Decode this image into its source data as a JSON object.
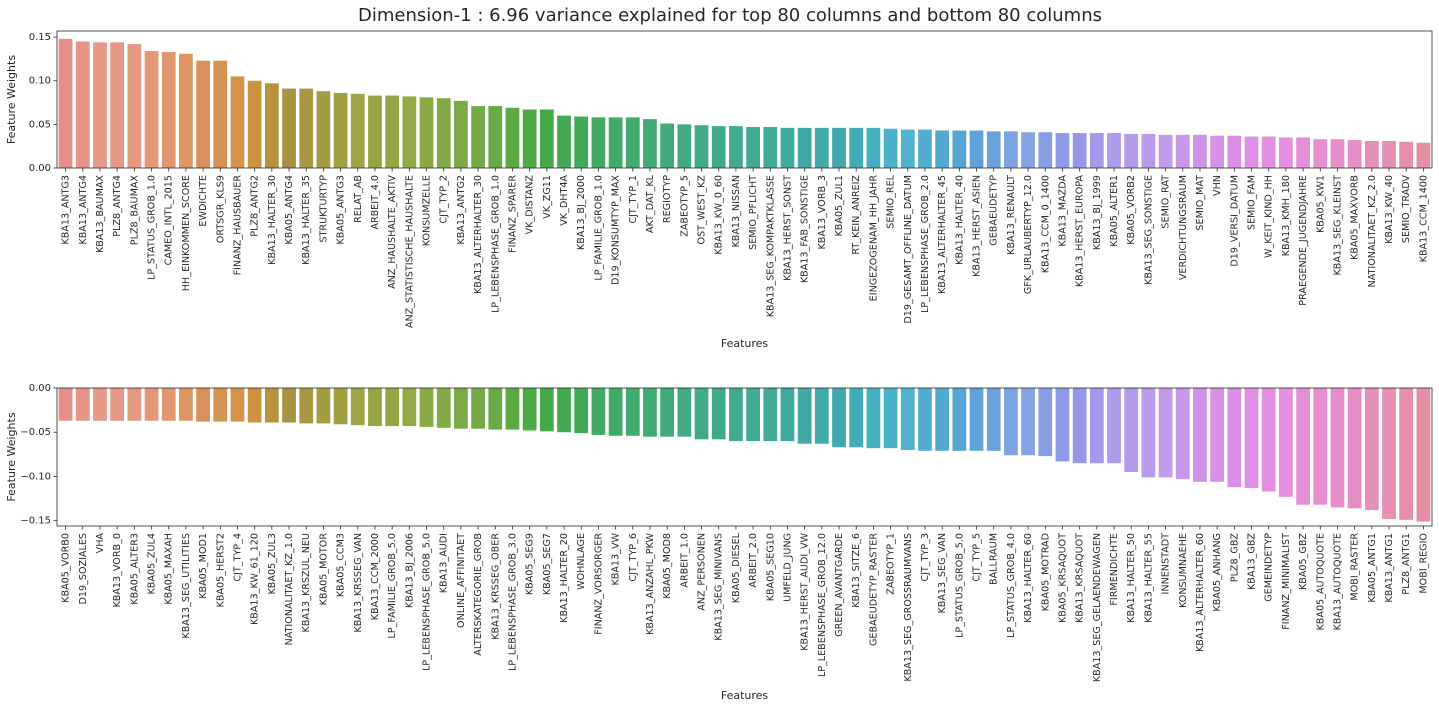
{
  "title": "Dimension-1 : 6.96 variance explained for top 80 columns and bottom 80 columns",
  "chart_data": [
    {
      "type": "bar",
      "xlabel": "Features",
      "ylabel": "Feature Weights",
      "categories": [
        "KBA13_ANTG3",
        "KBA13_ANTG4",
        "KBA13_BAUMAX",
        "PLZ8_ANTG4",
        "PLZ8_BAUMAX",
        "LP_STATUS_GROB_1.0",
        "CAMEO_INTL_2015",
        "HH_EINKOMMEN_SCORE",
        "EWDICHTE",
        "ORTSGR_KLS9",
        "FINANZ_HAUSBAUER",
        "PLZ8_ANTG2",
        "KBA13_HALTER_30",
        "KBA05_ANTG4",
        "KBA13_HALTER_35",
        "STRUKTURTYP",
        "KBA05_ANTG3",
        "RELAT_AB",
        "ARBEIT_4.0",
        "ANZ_HAUSHALTE_AKTIV",
        "ANZ_STATISTISCHE_HAUSHALTE",
        "KONSUMZELLE",
        "CJT_TYP_2",
        "KBA13_ANTG2",
        "KBA13_ALTERHALTER_30",
        "LP_LEBENSPHASE_GROB_1.0",
        "FINANZ_SPARER",
        "VK_DISTANZ",
        "VK_ZG11",
        "VK_DHT4A",
        "KBA13_BJ_2000",
        "LP_FAMILIE_GROB_1.0",
        "D19_KONSUMTYP_MAX",
        "CJT_TYP_1",
        "AKT_DAT_KL",
        "REGIOTYP",
        "ZABEOTYP_5",
        "OST_WEST_KZ",
        "KBA13_KW_0_60",
        "KBA13_NISSAN",
        "SEMIO_PFLICHT",
        "KBA13_SEG_KOMPAKTKLASSE",
        "KBA13_HERST_SONST",
        "KBA13_FAB_SONSTIGE",
        "KBA13_VORB_3",
        "KBA05_ZUL1",
        "RT_KEIN_ANREIZ",
        "EINGEZOGENAM_HH_JAHR",
        "SEMIO_REL",
        "D19_GESAMT_OFFLINE_DATUM",
        "LP_LEBENSPHASE_GROB_2.0",
        "KBA13_ALTERHALTER_45",
        "KBA13_HALTER_40",
        "KBA13_HERST_ASIEN",
        "GEBAEUDETYP",
        "KBA13_RENAULT",
        "GFK_URLAUBERTYP_12.0",
        "KBA13_CCM_0_1400",
        "KBA13_MAZDA",
        "KBA13_HERST_EUROPA",
        "KBA13_BJ_1999",
        "KBA05_ALTER1",
        "KBA05_VORB2",
        "KBA13_SEG_SONSTIGE",
        "SEMIO_RAT",
        "VERDICHTUNGSRAUM",
        "SEMIO_MAT",
        "VHN",
        "D19_VERSI_DATUM",
        "SEMIO_FAM",
        "W_KEIT_KIND_HH",
        "KBA13_KMH_180",
        "PRAEGENDE_JUGENDJAHRE",
        "KBA05_KW1",
        "KBA13_SEG_KLEINST",
        "KBA05_MAXVORB",
        "NATIONALITAET_KZ_2.0",
        "KBA13_KW_40",
        "SEMIO_TRADV",
        "KBA13_CCM_1400"
      ],
      "values": [
        0.148,
        0.145,
        0.144,
        0.144,
        0.142,
        0.134,
        0.133,
        0.131,
        0.123,
        0.123,
        0.105,
        0.1,
        0.097,
        0.091,
        0.091,
        0.088,
        0.086,
        0.085,
        0.083,
        0.083,
        0.082,
        0.081,
        0.08,
        0.077,
        0.071,
        0.071,
        0.069,
        0.067,
        0.067,
        0.06,
        0.059,
        0.058,
        0.058,
        0.058,
        0.056,
        0.051,
        0.05,
        0.049,
        0.048,
        0.048,
        0.047,
        0.047,
        0.046,
        0.046,
        0.046,
        0.046,
        0.046,
        0.046,
        0.045,
        0.044,
        0.044,
        0.043,
        0.043,
        0.043,
        0.042,
        0.042,
        0.041,
        0.041,
        0.04,
        0.04,
        0.04,
        0.04,
        0.039,
        0.039,
        0.038,
        0.038,
        0.038,
        0.037,
        0.037,
        0.036,
        0.036,
        0.035,
        0.035,
        0.033,
        0.033,
        0.032,
        0.031,
        0.031,
        0.03,
        0.029
      ],
      "colors": [
        "hsl(4,65%,72%)",
        "hsl(7,65%,72%)",
        "hsl(10,65%,72%)",
        "hsl(12,65%,71%)",
        "hsl(15,65%,70%)",
        "hsl(18,65%,68%)",
        "hsl(21,65%,66%)",
        "hsl(24,64%,63%)",
        "hsl(26,63%,60%)",
        "hsl(29,62%,58%)",
        "hsl(32,62%,56%)",
        "hsl(36,58%,52%)",
        "hsl(41,50%,48%)",
        "hsl(45,45%,46%)",
        "hsl(49,45%,46%)",
        "hsl(54,44%,45%)",
        "hsl(58,42%,45%)",
        "hsl(62,42%,45%)",
        "hsl(67,42%,45%)",
        "hsl(71,42%,46%)",
        "hsl(75,42%,47%)",
        "hsl(79,42%,47%)",
        "hsl(84,42%,47%)",
        "hsl(88,42%,47%)",
        "hsl(92,42%,47%)",
        "hsl(100,42%,47%)",
        "hsl(107,42%,47%)",
        "hsl(115,42%,47%)",
        "hsl(122,42%,47%)",
        "hsl(130,45%,46%)",
        "hsl(134,45%,46%)",
        "hsl(138,45%,46%)",
        "hsl(141,45%,46%)",
        "hsl(145,45%,46%)",
        "hsl(149,45%,46%)",
        "hsl(152,45%,46%)",
        "hsl(156,45%,46%)",
        "hsl(160,45%,46%)",
        "hsl(163,45%,46%)",
        "hsl(166,45%,46%)",
        "hsl(169,45%,46%)",
        "hsl(171,45%,46%)",
        "hsl(174,45%,46%)",
        "hsl(177,45%,46%)",
        "hsl(180,45%,46%)",
        "hsl(183,45%,47%)",
        "hsl(186,47%,49%)",
        "hsl(188,50%,51%)",
        "hsl(191,55%,54%)",
        "hsl(194,58%,56%)",
        "hsl(197,58%,57%)",
        "hsl(199,58%,57%)",
        "hsl(202,58%,58%)",
        "hsl(207,60%,61%)",
        "hsl(211,60%,64%)",
        "hsl(216,62%,68%)",
        "hsl(220,62%,70%)",
        "hsl(225,62%,71%)",
        "hsl(232,63%,73%)",
        "hsl(240,64%,75%)",
        "hsl(248,65%,76%)",
        "hsl(255,65%,76%)",
        "hsl(261,65%,76%)",
        "hsl(266,65%,76%)",
        "hsl(272,65%,76%)",
        "hsl(277,65%,75%)",
        "hsl(283,65%,74%)",
        "hsl(288,64%,74%)",
        "hsl(292,63%,73%)",
        "hsl(297,62%,73%)",
        "hsl(301,62%,73%)",
        "hsl(305,62%,73%)",
        "hsl(309,62%,73%)",
        "hsl(314,62%,73%)",
        "hsl(318,62%,73%)",
        "hsl(323,62%,73%)",
        "hsl(329,62%,73%)",
        "hsl(334,62%,73%)",
        "hsl(340,62%,73%)",
        "hsl(345,62%,73%)"
      ],
      "ylim": [
        0,
        0.157
      ],
      "yticks": [
        {
          "value": 0,
          "label": "0.00"
        },
        {
          "value": 0.05,
          "label": "0.05"
        },
        {
          "value": 0.1,
          "label": "0.10"
        },
        {
          "value": 0.15,
          "label": "0.15"
        }
      ]
    },
    {
      "type": "bar",
      "xlabel": "Features",
      "ylabel": "Feature Weights",
      "categories": [
        "KBA05_VORB0",
        "D19_SOZIALES",
        "VHA",
        "KBA13_VORB_0",
        "KBA05_ALTER3",
        "KBA05_ZUL4",
        "KBA05_MAXAH",
        "KBA13_SEG_UTILITIES",
        "KBA05_MOD1",
        "KBA05_HERST2",
        "CJT_TYP_4",
        "KBA13_KW_61_120",
        "KBA05_ZUL3",
        "NATIONALITAET_KZ_1.0",
        "KBA13_KRSZUL_NEU",
        "KBA05_MOTOR",
        "KBA05_CCM3",
        "KBA13_KRSSEG_VAN",
        "KBA13_CCM_2000",
        "LP_FAMILIE_GROB_5.0",
        "KBA13_BJ_2006",
        "LP_LEBENSPHASE_GROB_5.0",
        "KBA13_AUDI",
        "ONLINE_AFFINITAET",
        "ALTERSKATEGORIE_GROB",
        "KBA13_KRSSEG_OBER",
        "LP_LEBENSPHASE_GROB_3.0",
        "KBA05_SEG9",
        "KBA05_SEG7",
        "KBA13_HALTER_20",
        "WOHNLAGE",
        "FINANZ_VORSORGER",
        "KBA13_VW",
        "CJT_TYP_6",
        "KBA13_ANZAHL_PKW",
        "KBA05_MOD8",
        "ARBEIT_1.0",
        "ANZ_PERSONEN",
        "KBA13_SEG_MINIVANS",
        "KBA05_DIESEL",
        "ARBEIT_2.0",
        "KBA05_SEG10",
        "UMFELD_JUNG",
        "KBA13_HERST_AUDI_VW",
        "LP_LEBENSPHASE_GROB_12.0",
        "GREEN_AVANTGARDE",
        "KBA13_SITZE_6",
        "GEBAEUDETYP_RASTER",
        "ZABEOTYP_1",
        "KBA13_SEG_GROSSRAUMVANS",
        "CJT_TYP_3",
        "KBA13_SEG_VAN",
        "LP_STATUS_GROB_5.0",
        "CJT_TYP_5",
        "BALLRAUM",
        "LP_STATUS_GROB_4.0",
        "KBA13_HALTER_60",
        "KBA05_MOTRAD",
        "KBA05_KRSAQUOT",
        "KBA13_KRSAQUOT",
        "KBA13_SEG_GELAENDEWAGEN",
        "FIRMENDICHTE",
        "KBA13_HALTER_50",
        "KBA13_HALTER_55",
        "INNENSTADT",
        "KONSUMNAEHE",
        "KBA13_ALTERHALTER_60",
        "KBA05_ANHANG",
        "PLZ8_GBZ",
        "KBA13_GBZ",
        "GEMEINDETYP",
        "FINANZ_MINIMALIST",
        "KBA05_GBZ",
        "KBA05_AUTOQUOTE",
        "KBA13_AUTOQUOTE",
        "MOBI_RASTER",
        "KBA05_ANTG1",
        "KBA13_ANTG1",
        "PLZ8_ANTG1",
        "MOBI_REGIO"
      ],
      "values": [
        -0.037,
        -0.037,
        -0.037,
        -0.037,
        -0.037,
        -0.037,
        -0.037,
        -0.037,
        -0.038,
        -0.038,
        -0.038,
        -0.039,
        -0.039,
        -0.039,
        -0.04,
        -0.04,
        -0.041,
        -0.042,
        -0.043,
        -0.043,
        -0.043,
        -0.044,
        -0.045,
        -0.046,
        -0.046,
        -0.047,
        -0.047,
        -0.048,
        -0.049,
        -0.05,
        -0.051,
        -0.053,
        -0.054,
        -0.054,
        -0.055,
        -0.055,
        -0.055,
        -0.058,
        -0.058,
        -0.06,
        -0.06,
        -0.06,
        -0.06,
        -0.063,
        -0.063,
        -0.067,
        -0.067,
        -0.068,
        -0.068,
        -0.07,
        -0.071,
        -0.071,
        -0.071,
        -0.071,
        -0.071,
        -0.076,
        -0.076,
        -0.077,
        -0.083,
        -0.085,
        -0.085,
        -0.085,
        -0.095,
        -0.101,
        -0.101,
        -0.103,
        -0.106,
        -0.106,
        -0.112,
        -0.113,
        -0.117,
        -0.123,
        -0.132,
        -0.132,
        -0.135,
        -0.136,
        -0.138,
        -0.148,
        -0.149,
        -0.151
      ],
      "colors": [
        "hsl(4,65%,72%)",
        "hsl(7,65%,72%)",
        "hsl(10,65%,72%)",
        "hsl(12,65%,71%)",
        "hsl(15,65%,70%)",
        "hsl(18,65%,68%)",
        "hsl(21,65%,66%)",
        "hsl(24,64%,63%)",
        "hsl(26,63%,60%)",
        "hsl(29,62%,58%)",
        "hsl(32,62%,56%)",
        "hsl(36,58%,52%)",
        "hsl(41,50%,48%)",
        "hsl(45,45%,46%)",
        "hsl(49,45%,46%)",
        "hsl(54,44%,45%)",
        "hsl(58,42%,45%)",
        "hsl(62,42%,45%)",
        "hsl(67,42%,45%)",
        "hsl(71,42%,46%)",
        "hsl(75,42%,47%)",
        "hsl(79,42%,47%)",
        "hsl(84,42%,47%)",
        "hsl(88,42%,47%)",
        "hsl(92,42%,47%)",
        "hsl(100,42%,47%)",
        "hsl(107,42%,47%)",
        "hsl(115,42%,47%)",
        "hsl(122,42%,47%)",
        "hsl(130,45%,46%)",
        "hsl(134,45%,46%)",
        "hsl(138,45%,46%)",
        "hsl(141,45%,46%)",
        "hsl(145,45%,46%)",
        "hsl(149,45%,46%)",
        "hsl(152,45%,46%)",
        "hsl(156,45%,46%)",
        "hsl(160,45%,46%)",
        "hsl(163,45%,46%)",
        "hsl(166,45%,46%)",
        "hsl(169,45%,46%)",
        "hsl(171,45%,46%)",
        "hsl(174,45%,46%)",
        "hsl(177,45%,46%)",
        "hsl(180,45%,46%)",
        "hsl(183,45%,47%)",
        "hsl(186,47%,49%)",
        "hsl(188,50%,51%)",
        "hsl(191,55%,54%)",
        "hsl(194,58%,56%)",
        "hsl(197,58%,57%)",
        "hsl(199,58%,57%)",
        "hsl(202,58%,58%)",
        "hsl(207,60%,61%)",
        "hsl(211,60%,64%)",
        "hsl(216,62%,68%)",
        "hsl(220,62%,70%)",
        "hsl(225,62%,71%)",
        "hsl(232,63%,73%)",
        "hsl(240,64%,75%)",
        "hsl(248,65%,76%)",
        "hsl(255,65%,76%)",
        "hsl(261,65%,76%)",
        "hsl(266,65%,76%)",
        "hsl(272,65%,76%)",
        "hsl(277,65%,75%)",
        "hsl(283,65%,74%)",
        "hsl(288,64%,74%)",
        "hsl(292,63%,73%)",
        "hsl(297,62%,73%)",
        "hsl(301,62%,73%)",
        "hsl(305,62%,73%)",
        "hsl(309,62%,73%)",
        "hsl(314,62%,73%)",
        "hsl(318,62%,73%)",
        "hsl(323,62%,73%)",
        "hsl(329,62%,73%)",
        "hsl(334,62%,73%)",
        "hsl(340,62%,73%)",
        "hsl(345,62%,73%)"
      ],
      "ylim": [
        -0.156,
        0
      ],
      "yticks": [
        {
          "value": -0.15,
          "label": "−0.15"
        },
        {
          "value": -0.1,
          "label": "−0.10"
        },
        {
          "value": -0.05,
          "label": "−0.05"
        },
        {
          "value": 0,
          "label": "0.00"
        }
      ]
    }
  ]
}
